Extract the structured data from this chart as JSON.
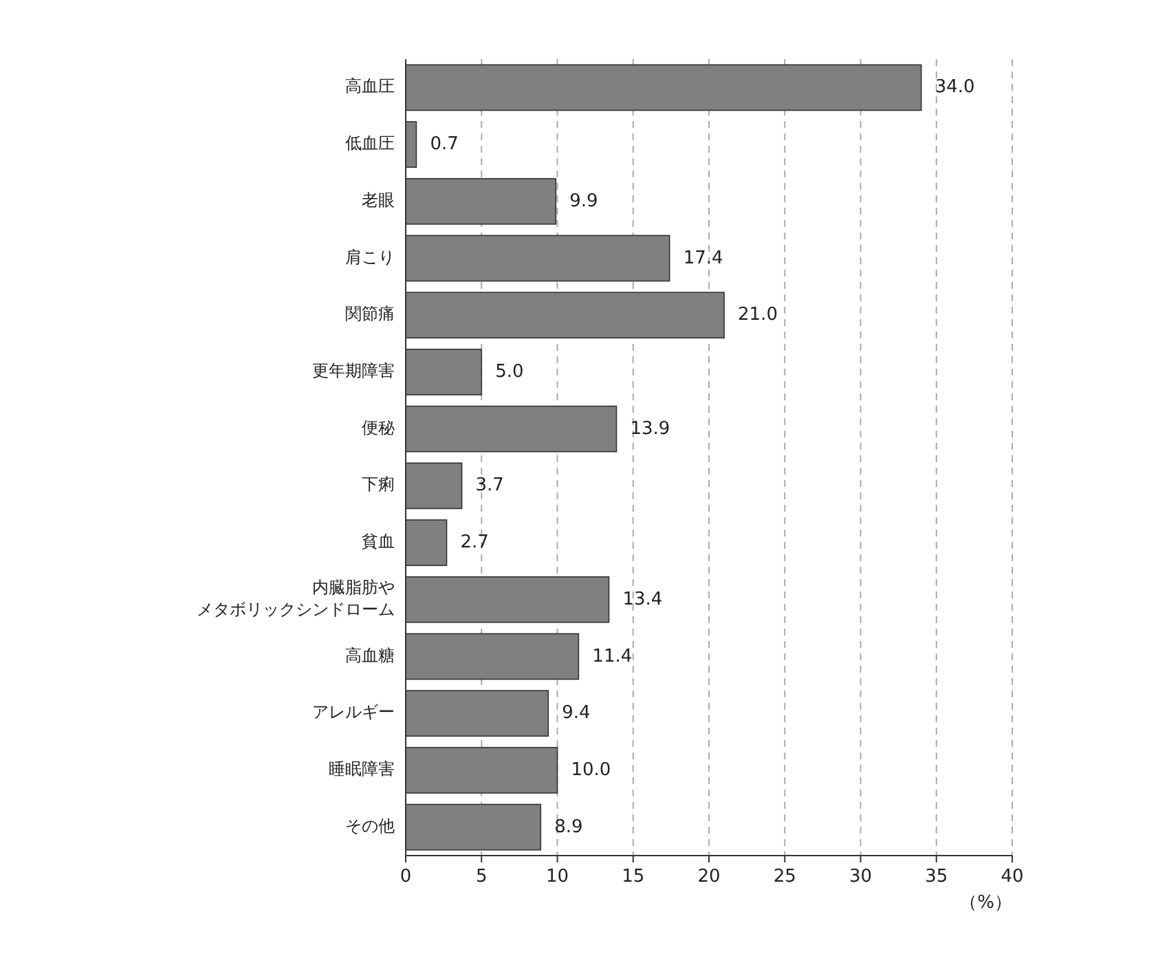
{
  "chart_data": {
    "type": "bar",
    "orientation": "horizontal",
    "categories": [
      "高血圧",
      "低血圧",
      "老眼",
      "肩こり",
      "関節痛",
      "更年期障害",
      "便秘",
      "下痢",
      "貧血",
      "内臓脂肪やメタボリックシンドローム",
      "高血糖",
      "アレルギー",
      "睡眠障害",
      "その他"
    ],
    "values": [
      34.0,
      0.7,
      9.9,
      17.4,
      21.0,
      5.0,
      13.9,
      3.7,
      2.7,
      13.4,
      11.4,
      9.4,
      10.0,
      8.9
    ],
    "value_labels": [
      "34.0",
      "0.7",
      "9.9",
      "17.4",
      "21.0",
      "5.0",
      "13.9",
      "3.7",
      "2.7",
      "13.4",
      "11.4",
      "9.4",
      "10.0",
      "8.9"
    ],
    "color": "#808080",
    "xlim": [
      0,
      40
    ],
    "xticks": [
      0,
      5,
      10,
      15,
      20,
      25,
      30,
      35,
      40
    ],
    "xlabel": "（%）",
    "grid": "x"
  }
}
